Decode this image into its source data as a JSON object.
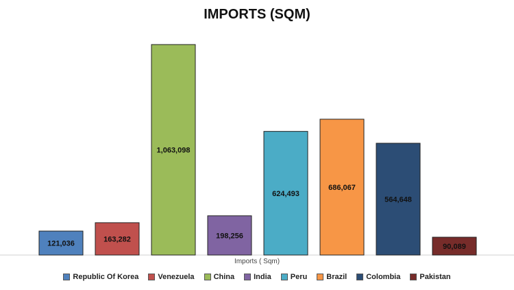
{
  "chart_data": {
    "type": "bar",
    "title": "IMPORTS (SQM)",
    "xlabel": "Imports ( Sqm)",
    "ylabel": "",
    "ylim": [
      0,
      1160000
    ],
    "grid": false,
    "legend_position": "bottom",
    "categories": [
      "Republic Of Korea",
      "Venezuela",
      "China",
      "India",
      "Peru",
      "Brazil",
      "Colombia",
      "Pakistan"
    ],
    "values": [
      121036,
      163282,
      1063098,
      198256,
      624493,
      686067,
      564648,
      90089
    ],
    "value_labels": [
      "121,036",
      "163,282",
      "1,063,098",
      "198,256",
      "624,493",
      "686,067",
      "564,648",
      "90,089"
    ],
    "colors": [
      "#4F81BD",
      "#C0504D",
      "#9BBB59",
      "#8064A2",
      "#4BACC6",
      "#F79646",
      "#2C4D75",
      "#772C2A"
    ]
  }
}
